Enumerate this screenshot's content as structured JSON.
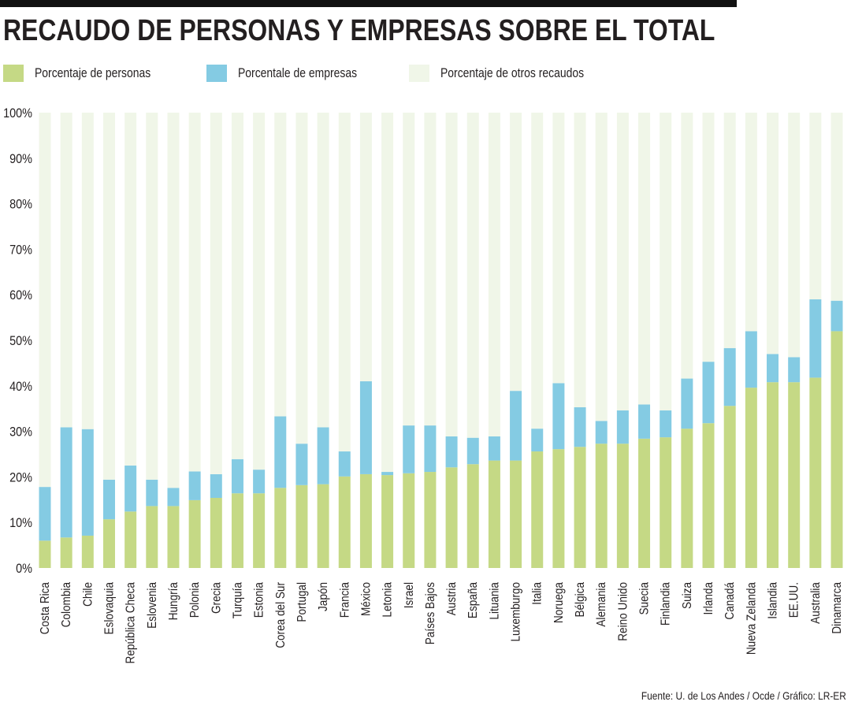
{
  "title": "RECAUDO DE PERSONAS Y EMPRESAS SOBRE EL TOTAL",
  "source": "Fuente: U. de Los Andes / Ocde / Gráfico: LR-ER",
  "colors": {
    "personas": "#c5d985",
    "empresas": "#84cbe3",
    "otros": "#f0f6e8"
  },
  "chart_data": {
    "type": "bar",
    "stacked": true,
    "title": "RECAUDO DE PERSONAS Y EMPRESAS SOBRE EL TOTAL",
    "ylim": [
      0,
      100
    ],
    "yticks": [
      "0%",
      "10%",
      "20%",
      "30%",
      "40%",
      "50%",
      "60%",
      "70%",
      "80%",
      "90%",
      "100%"
    ],
    "legend_position": "top",
    "grid": false,
    "categories": [
      "Costa Rica",
      "Colombia",
      "Chile",
      "Eslovaquia",
      "República Checa",
      "Eslovenia",
      "Hungría",
      "Polonia",
      "Grecia",
      "Turquía",
      "Estonia",
      "Corea del Sur",
      "Portugal",
      "Japón",
      "Francia",
      "México",
      "Letonia",
      "Israel",
      "Países Bajos",
      "Austria",
      "España",
      "Lituania",
      "Luxemburgo",
      "Italia",
      "Noruega",
      "Bélgica",
      "Alemania",
      "Reino Unido",
      "Suecia",
      "Finlandia",
      "Suiza",
      "Irlanda",
      "Canadá",
      "Nueva Zelanda",
      "Islandia",
      "EE.UU.",
      "Australia",
      "Dinamarca"
    ],
    "series": [
      {
        "name": "Porcentaje de personas",
        "values": [
          6.0,
          6.7,
          7.1,
          10.7,
          12.4,
          13.6,
          13.6,
          14.9,
          15.4,
          16.4,
          16.4,
          17.6,
          18.2,
          18.4,
          20.1,
          20.6,
          20.4,
          20.8,
          21.1,
          22.1,
          22.8,
          23.6,
          23.6,
          25.6,
          26.1,
          26.6,
          27.3,
          27.3,
          28.4,
          28.7,
          30.6,
          31.8,
          35.6,
          39.6,
          40.8,
          40.8,
          41.8,
          52.0
        ]
      },
      {
        "name": "Porcentale de empresas",
        "values": [
          11.8,
          24.2,
          23.4,
          8.7,
          10.1,
          5.8,
          4.0,
          6.3,
          5.2,
          7.5,
          5.2,
          15.7,
          9.1,
          12.5,
          5.5,
          20.4,
          0.7,
          10.5,
          10.2,
          6.8,
          5.8,
          5.3,
          15.3,
          5.0,
          14.5,
          8.7,
          5.0,
          7.3,
          7.5,
          5.9,
          11.0,
          13.5,
          12.7,
          12.4,
          6.2,
          5.5,
          17.2,
          6.7
        ]
      },
      {
        "name": "Porcentaje de otros recaudos",
        "values": [
          82.2,
          69.1,
          69.5,
          80.6,
          77.5,
          80.6,
          82.4,
          78.8,
          79.4,
          76.1,
          78.4,
          66.7,
          72.7,
          69.1,
          74.4,
          59.0,
          78.9,
          68.7,
          68.7,
          71.1,
          71.4,
          71.1,
          61.1,
          69.4,
          59.4,
          64.7,
          67.7,
          65.4,
          64.1,
          65.4,
          58.4,
          54.7,
          51.7,
          48.0,
          53.0,
          53.7,
          41.0,
          41.3
        ]
      }
    ]
  }
}
